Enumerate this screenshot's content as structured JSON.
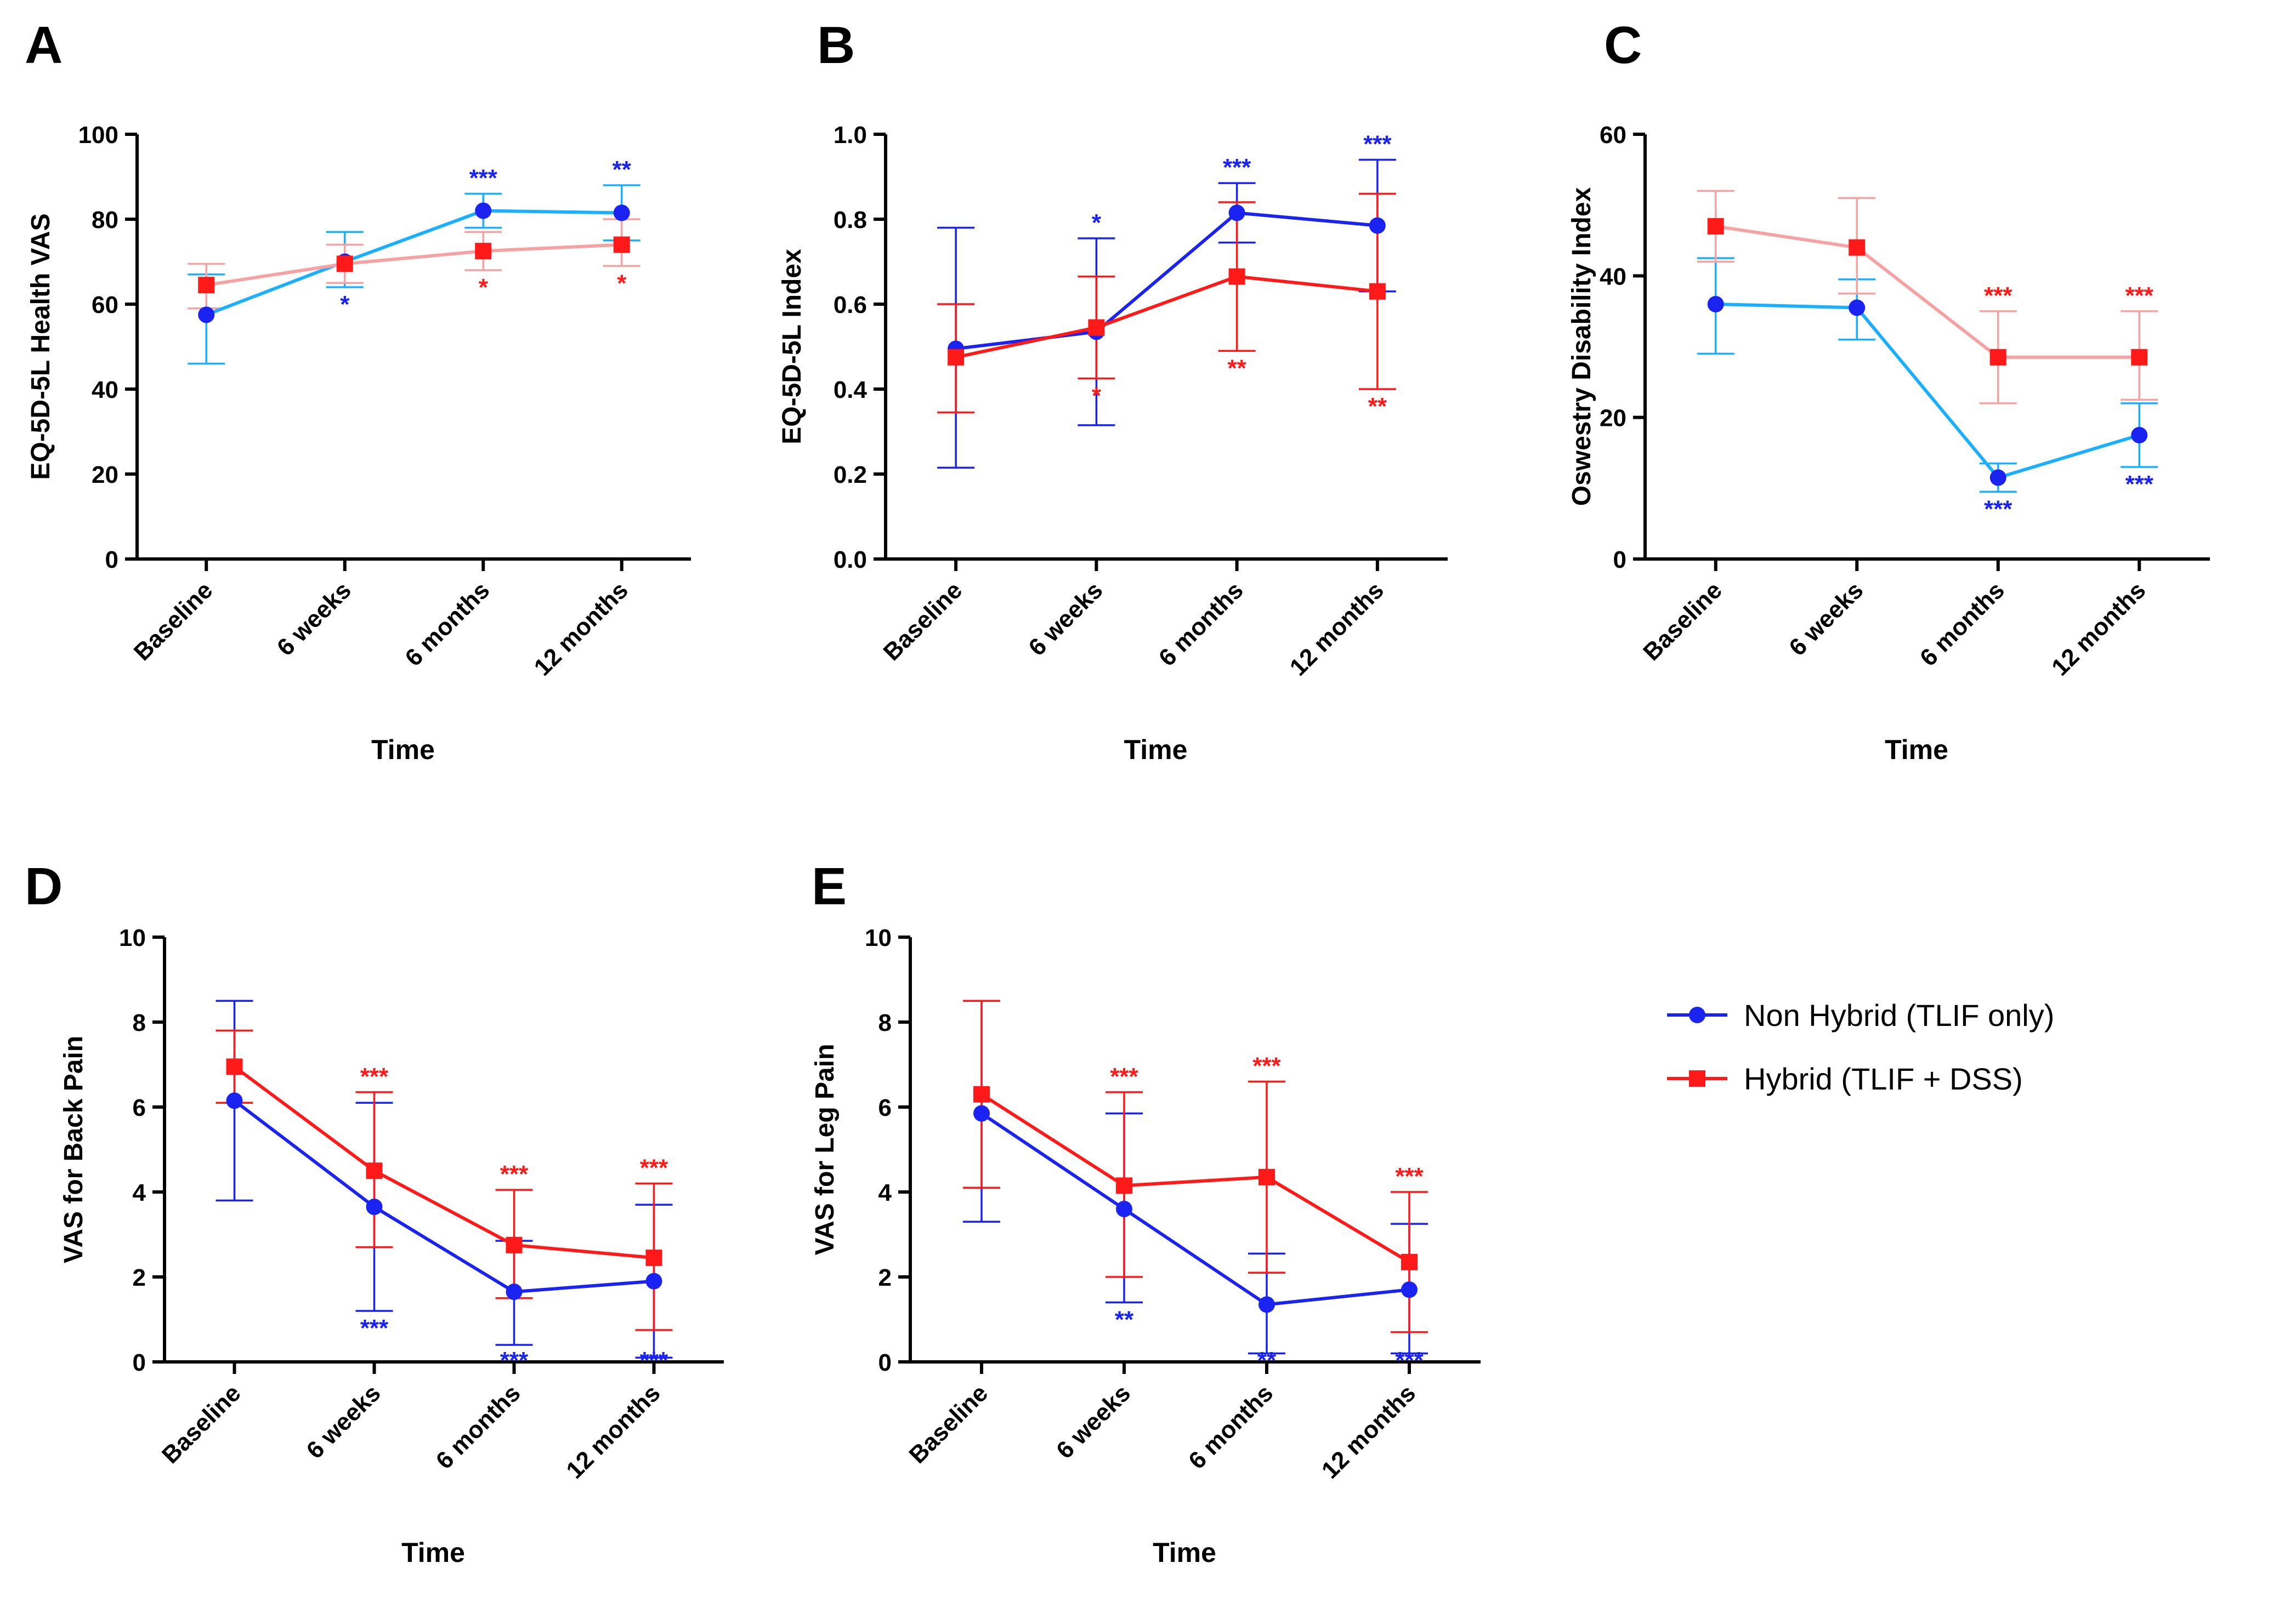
{
  "legend": {
    "items": [
      {
        "label": "Non Hybrid (TLIF only)",
        "marker": "circle",
        "color": "#1a23f0"
      },
      {
        "label": "Hybrid (TLIF + DSS)",
        "marker": "square",
        "color": "#ff1a1a"
      }
    ]
  },
  "chart_data": [
    {
      "panel": "A",
      "type": "line",
      "xlabel": "Time",
      "ylabel": "EQ-5D-5L Health VAS",
      "categories": [
        "Baseline",
        "6 weeks",
        "6 months",
        "12 months"
      ],
      "ylim": [
        0,
        100
      ],
      "yticks": [
        "0",
        "20",
        "40",
        "60",
        "80",
        "100"
      ],
      "series": [
        {
          "name": "Non Hybrid (TLIF only)",
          "marker": "circle",
          "line_color": "#1ab0ff",
          "point_color": "#1a23f0",
          "values": [
            57.5,
            70,
            82,
            81.5
          ],
          "error_low": [
            46,
            64,
            78,
            75
          ],
          "error_high": [
            67,
            77,
            86,
            88
          ],
          "sig": [
            "",
            "*",
            "***",
            "**"
          ],
          "sig_pos": [
            "",
            "below",
            "above",
            "above"
          ],
          "sig_color": "#1a23f0"
        },
        {
          "name": "Hybrid (TLIF + DSS)",
          "marker": "square",
          "line_color": "#f7a2a2",
          "point_color": "#ff1a1a",
          "values": [
            64.5,
            69.5,
            72.5,
            74
          ],
          "error_low": [
            59,
            65,
            68,
            69
          ],
          "error_high": [
            69.5,
            74,
            77,
            80
          ],
          "sig": [
            "",
            "",
            "*",
            "*"
          ],
          "sig_pos": [
            "",
            "",
            "below",
            "below"
          ],
          "sig_color": "#ff1a1a"
        }
      ]
    },
    {
      "panel": "B",
      "type": "line",
      "xlabel": "Time",
      "ylabel": "EQ-5D-5L Index",
      "categories": [
        "Baseline",
        "6 weeks",
        "6 months",
        "12 months"
      ],
      "ylim": [
        0,
        1
      ],
      "yticks": [
        "0.0",
        "0.2",
        "0.4",
        "0.6",
        "0.8",
        "1.0"
      ],
      "series": [
        {
          "name": "Non Hybrid (TLIF only)",
          "marker": "circle",
          "line_color": "#1a23f0",
          "point_color": "#1a23f0",
          "values": [
            0.495,
            0.535,
            0.815,
            0.785
          ],
          "error_low": [
            0.215,
            0.315,
            0.745,
            0.63
          ],
          "error_high": [
            0.78,
            0.755,
            0.885,
            0.94
          ],
          "sig": [
            "",
            "*",
            "***",
            "***"
          ],
          "sig_pos": [
            "",
            "above",
            "above",
            "above"
          ],
          "sig_color": "#1a23f0"
        },
        {
          "name": "Hybrid (TLIF + DSS)",
          "marker": "square",
          "line_color": "#ff1a1a",
          "point_color": "#ff1a1a",
          "values": [
            0.475,
            0.545,
            0.665,
            0.63
          ],
          "error_low": [
            0.345,
            0.425,
            0.49,
            0.4
          ],
          "error_high": [
            0.6,
            0.665,
            0.84,
            0.86
          ],
          "sig": [
            "",
            "*",
            "**",
            "**"
          ],
          "sig_pos": [
            "",
            "below",
            "below",
            "below"
          ],
          "sig_color": "#ff1a1a"
        }
      ]
    },
    {
      "panel": "C",
      "type": "line",
      "xlabel": "Time",
      "ylabel": "Oswestry Disability Index",
      "categories": [
        "Baseline",
        "6 weeks",
        "6 months",
        "12 months"
      ],
      "ylim": [
        0,
        60
      ],
      "yticks": [
        "0",
        "20",
        "40",
        "60"
      ],
      "series": [
        {
          "name": "Non Hybrid (TLIF only)",
          "marker": "circle",
          "line_color": "#1ab0ff",
          "point_color": "#1a23f0",
          "values": [
            36,
            35.5,
            11.5,
            17.5
          ],
          "error_low": [
            29,
            31,
            9.5,
            13
          ],
          "error_high": [
            42.5,
            39.5,
            13.5,
            22
          ],
          "sig": [
            "",
            "",
            "***",
            "***"
          ],
          "sig_pos": [
            "",
            "",
            "below",
            "below"
          ],
          "sig_color": "#1a23f0"
        },
        {
          "name": "Hybrid (TLIF + DSS)",
          "marker": "square",
          "line_color": "#f7a2a2",
          "point_color": "#ff1a1a",
          "values": [
            47,
            44,
            28.5,
            28.5
          ],
          "error_low": [
            42,
            37.5,
            22,
            22.5
          ],
          "error_high": [
            52,
            51,
            35,
            35
          ],
          "sig": [
            "",
            "",
            "***",
            "***"
          ],
          "sig_pos": [
            "",
            "",
            "above",
            "above"
          ],
          "sig_color": "#ff1a1a"
        }
      ]
    },
    {
      "panel": "D",
      "type": "line",
      "xlabel": "Time",
      "ylabel": "VAS for Back Pain",
      "categories": [
        "Baseline",
        "6 weeks",
        "6 months",
        "12 months"
      ],
      "ylim": [
        0,
        10
      ],
      "yticks": [
        "0",
        "2",
        "4",
        "6",
        "8",
        "10"
      ],
      "series": [
        {
          "name": "Non Hybrid (TLIF only)",
          "marker": "circle",
          "line_color": "#1a23f0",
          "point_color": "#1a23f0",
          "values": [
            6.15,
            3.65,
            1.65,
            1.9
          ],
          "error_low": [
            3.8,
            1.2,
            0.4,
            0.1
          ],
          "error_high": [
            8.5,
            6.1,
            2.85,
            3.7
          ],
          "sig": [
            "",
            "***",
            "***",
            "***"
          ],
          "sig_pos": [
            "",
            "below",
            "below",
            "below"
          ],
          "sig_color": "#1a23f0"
        },
        {
          "name": "Hybrid (TLIF + DSS)",
          "marker": "square",
          "line_color": "#ff1a1a",
          "point_color": "#ff1a1a",
          "values": [
            6.95,
            4.5,
            2.75,
            2.45
          ],
          "error_low": [
            6.1,
            2.7,
            1.5,
            0.75
          ],
          "error_high": [
            7.8,
            6.35,
            4.05,
            4.2
          ],
          "sig": [
            "",
            "***",
            "***",
            "***"
          ],
          "sig_pos": [
            "",
            "above",
            "above",
            "above"
          ],
          "sig_color": "#ff1a1a"
        }
      ]
    },
    {
      "panel": "E",
      "type": "line",
      "xlabel": "Time",
      "ylabel": "VAS for Leg Pain",
      "categories": [
        "Baseline",
        "6 weeks",
        "6 months",
        "12 months"
      ],
      "ylim": [
        0,
        10
      ],
      "yticks": [
        "0",
        "2",
        "4",
        "6",
        "8",
        "10"
      ],
      "series": [
        {
          "name": "Non Hybrid (TLIF only)",
          "marker": "circle",
          "line_color": "#1a23f0",
          "point_color": "#1a23f0",
          "values": [
            5.85,
            3.6,
            1.35,
            1.7
          ],
          "error_low": [
            3.3,
            1.4,
            0.2,
            0.2
          ],
          "error_high": [
            8.5,
            5.85,
            2.55,
            3.25
          ],
          "sig": [
            "",
            "**",
            "**",
            "***"
          ],
          "sig_pos": [
            "",
            "below",
            "below",
            "below"
          ],
          "sig_color": "#1a23f0"
        },
        {
          "name": "Hybrid (TLIF + DSS)",
          "marker": "square",
          "line_color": "#ff1a1a",
          "point_color": "#ff1a1a",
          "values": [
            6.3,
            4.15,
            4.35,
            2.35
          ],
          "error_low": [
            4.1,
            2.0,
            2.1,
            0.7
          ],
          "error_high": [
            8.5,
            6.35,
            6.6,
            4.0
          ],
          "sig": [
            "",
            "***",
            "***",
            "***"
          ],
          "sig_pos": [
            "",
            "above",
            "above",
            "above"
          ],
          "sig_color": "#ff1a1a"
        }
      ]
    }
  ]
}
